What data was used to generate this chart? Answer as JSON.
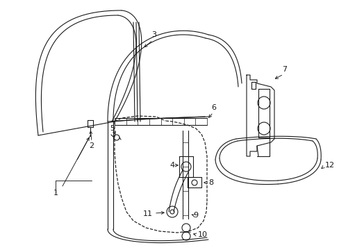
{
  "bg_color": "#ffffff",
  "line_color": "#1a1a1a",
  "fig_width": 4.89,
  "fig_height": 3.6,
  "dpi": 100,
  "font_size": 8.0,
  "line_width": 0.8
}
